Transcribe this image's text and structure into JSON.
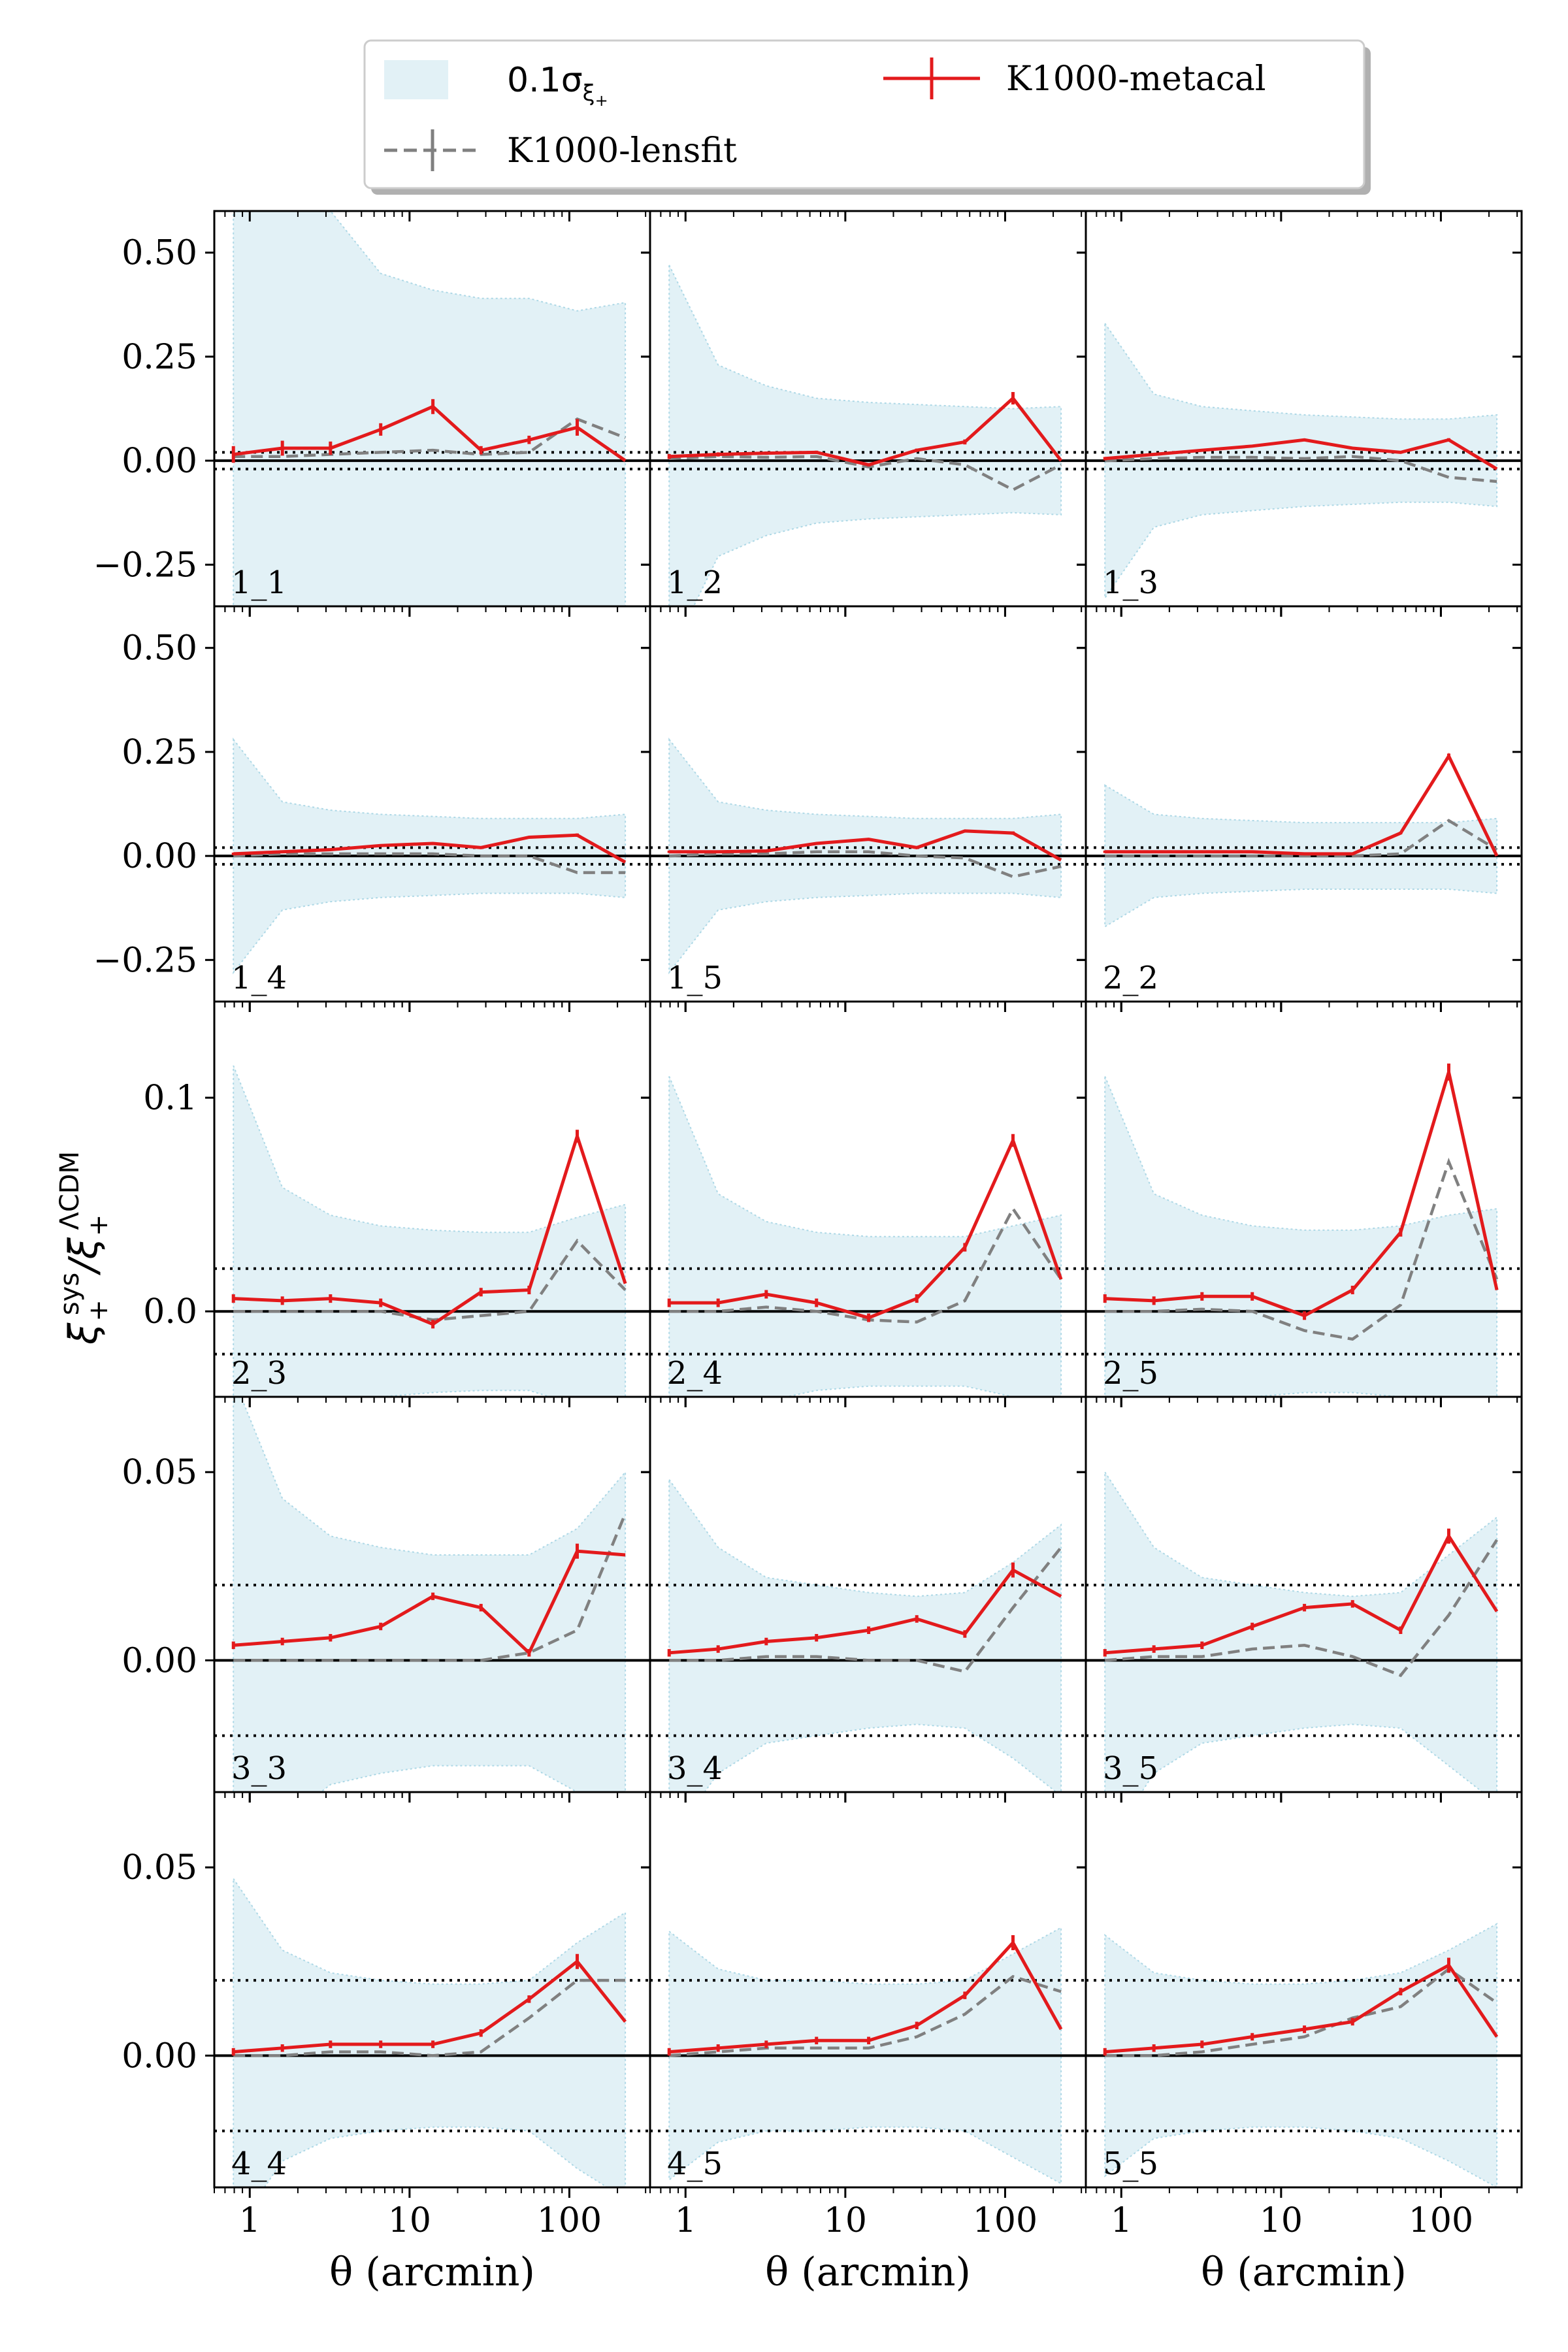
{
  "chart_data": {
    "type": "line",
    "layout": {
      "rows": 5,
      "cols": 3
    },
    "xlabel": "θ (arcmin)",
    "ylabel": {
      "prefix": "ξ",
      "sub1": "+",
      "sup1": "sys",
      "sep": "/ξ",
      "sub2": "+",
      "sup2": "ΛCDM"
    },
    "xscale": "log",
    "xlim": [
      0.6,
      320
    ],
    "xticks": [
      1,
      10,
      100
    ],
    "xticklabels": [
      "1",
      "10",
      "100"
    ],
    "x": [
      0.79,
      1.6,
      3.2,
      6.6,
      14,
      28,
      56,
      112,
      224
    ],
    "legend": {
      "placement": "top-center",
      "entries": [
        {
          "key": "band",
          "prefix": "0.1σ",
          "sub": "ξ",
          "subsub": "+"
        },
        {
          "key": "metacal",
          "label": "K1000-metacal"
        },
        {
          "key": "lensfit",
          "label": "K1000-lensfit"
        }
      ]
    },
    "colors": {
      "band": "#add8e6",
      "metacal": "#e31a1c",
      "lensfit": "#808080",
      "reference": "#000000"
    },
    "rows": [
      {
        "ylim": [
          -0.35,
          0.6
        ],
        "yticks": [
          -0.25,
          0.0,
          0.25,
          0.5
        ],
        "yticklabels": [
          "−0.25",
          "0.00",
          "0.25",
          "0.50"
        ],
        "threshold": 0.02
      },
      {
        "ylim": [
          -0.35,
          0.6
        ],
        "yticks": [
          -0.25,
          0.0,
          0.25,
          0.5
        ],
        "yticklabels": [
          "−0.25",
          "0.00",
          "0.25",
          "0.50"
        ],
        "threshold": 0.02
      },
      {
        "ylim": [
          -0.04,
          0.145
        ],
        "yticks": [
          0.0,
          0.1
        ],
        "yticklabels": [
          "0.0",
          "0.1"
        ],
        "threshold": 0.02
      },
      {
        "ylim": [
          -0.035,
          0.07
        ],
        "yticks": [
          0.0,
          0.05
        ],
        "yticklabels": [
          "0.00",
          "0.05"
        ],
        "threshold": 0.02
      },
      {
        "ylim": [
          -0.035,
          0.07
        ],
        "yticks": [
          0.0,
          0.05
        ],
        "yticklabels": [
          "0.00",
          "0.05"
        ],
        "threshold": 0.02
      }
    ],
    "panels": [
      {
        "label": "1_1",
        "row": 0,
        "col": 0,
        "metacal": [
          0.015,
          0.03,
          0.03,
          0.075,
          0.13,
          0.025,
          0.05,
          0.08,
          0.0
        ],
        "errors": [
          0.02,
          0.018,
          0.016,
          0.015,
          0.018,
          0.01,
          0.01,
          0.02,
          0.0
        ],
        "lensfit": [
          0.01,
          0.01,
          0.015,
          0.02,
          0.025,
          0.015,
          0.02,
          0.1,
          0.055
        ],
        "band": [
          0.7,
          0.7,
          0.6,
          0.45,
          0.41,
          0.39,
          0.39,
          0.36,
          0.38
        ]
      },
      {
        "label": "1_2",
        "row": 0,
        "col": 1,
        "metacal": [
          0.01,
          0.015,
          0.018,
          0.02,
          -0.01,
          0.025,
          0.045,
          0.15,
          0.0
        ],
        "errors": [
          0.006,
          0.005,
          0.004,
          0.004,
          0.004,
          0.004,
          0.006,
          0.015,
          0.0
        ],
        "lensfit": [
          0.005,
          0.01,
          0.008,
          0.01,
          -0.015,
          0.005,
          -0.01,
          -0.07,
          -0.01
        ],
        "band": [
          0.47,
          0.23,
          0.18,
          0.15,
          0.14,
          0.135,
          0.13,
          0.125,
          0.13
        ]
      },
      {
        "label": "1_3",
        "row": 0,
        "col": 2,
        "metacal": [
          0.005,
          0.015,
          0.025,
          0.035,
          0.05,
          0.03,
          0.02,
          0.05,
          -0.02
        ],
        "errors": [
          0.004,
          0.003,
          0.003,
          0.003,
          0.003,
          0.003,
          0.003,
          0.004,
          0.0
        ],
        "lensfit": [
          0.0,
          0.005,
          0.008,
          0.008,
          0.005,
          0.01,
          0.0,
          -0.04,
          -0.05
        ],
        "band": [
          0.33,
          0.16,
          0.13,
          0.12,
          0.11,
          0.105,
          0.1,
          0.1,
          0.11
        ]
      },
      {
        "label": "1_4",
        "row": 1,
        "col": 0,
        "metacal": [
          0.005,
          0.01,
          0.015,
          0.025,
          0.03,
          0.02,
          0.045,
          0.05,
          -0.015
        ],
        "errors": [
          0.003,
          0.003,
          0.003,
          0.003,
          0.003,
          0.003,
          0.003,
          0.004,
          0.0
        ],
        "lensfit": [
          0.0,
          0.005,
          0.005,
          0.005,
          0.005,
          0.0,
          0.0,
          -0.04,
          -0.04
        ],
        "band": [
          0.28,
          0.13,
          0.11,
          0.1,
          0.095,
          0.09,
          0.09,
          0.09,
          0.1
        ]
      },
      {
        "label": "1_5",
        "row": 1,
        "col": 1,
        "metacal": [
          0.01,
          0.01,
          0.012,
          0.03,
          0.04,
          0.02,
          0.06,
          0.055,
          -0.01
        ],
        "errors": [
          0.003,
          0.003,
          0.003,
          0.003,
          0.003,
          0.003,
          0.003,
          0.004,
          0.0
        ],
        "lensfit": [
          0.0,
          0.005,
          0.005,
          0.01,
          0.01,
          0.0,
          -0.005,
          -0.05,
          -0.025
        ],
        "band": [
          0.28,
          0.13,
          0.11,
          0.1,
          0.095,
          0.09,
          0.09,
          0.09,
          0.1
        ]
      },
      {
        "label": "2_2",
        "row": 1,
        "col": 2,
        "metacal": [
          0.01,
          0.01,
          0.01,
          0.01,
          0.005,
          0.005,
          0.055,
          0.24,
          0.0
        ],
        "errors": [
          0.003,
          0.003,
          0.003,
          0.003,
          0.003,
          0.003,
          0.003,
          0.006,
          0.0
        ],
        "lensfit": [
          0.0,
          0.0,
          0.0,
          0.0,
          0.0,
          0.0,
          0.005,
          0.085,
          0.015
        ],
        "band": [
          0.17,
          0.1,
          0.09,
          0.085,
          0.08,
          0.08,
          0.08,
          0.08,
          0.09
        ]
      },
      {
        "label": "2_3",
        "row": 2,
        "col": 0,
        "metacal": [
          0.006,
          0.005,
          0.006,
          0.004,
          -0.006,
          0.009,
          0.01,
          0.082,
          0.013
        ],
        "errors": [
          0.002,
          0.002,
          0.002,
          0.002,
          0.002,
          0.002,
          0.002,
          0.003,
          0.0
        ],
        "lensfit": [
          0.0,
          0.0,
          0.0,
          0.0,
          -0.004,
          -0.002,
          0.0,
          0.033,
          0.01
        ],
        "band": [
          0.115,
          0.058,
          0.045,
          0.04,
          0.038,
          0.037,
          0.037,
          0.044,
          0.05
        ]
      },
      {
        "label": "2_4",
        "row": 2,
        "col": 1,
        "metacal": [
          0.004,
          0.004,
          0.008,
          0.004,
          -0.003,
          0.006,
          0.03,
          0.08,
          0.015
        ],
        "errors": [
          0.002,
          0.002,
          0.002,
          0.002,
          0.002,
          0.002,
          0.002,
          0.003,
          0.0
        ],
        "lensfit": [
          0.0,
          0.0,
          0.002,
          0.0,
          -0.004,
          -0.005,
          0.005,
          0.048,
          0.015
        ],
        "band": [
          0.11,
          0.055,
          0.042,
          0.037,
          0.035,
          0.035,
          0.035,
          0.04,
          0.045
        ]
      },
      {
        "label": "2_5",
        "row": 2,
        "col": 2,
        "metacal": [
          0.006,
          0.005,
          0.007,
          0.007,
          -0.002,
          0.01,
          0.037,
          0.112,
          0.01
        ],
        "errors": [
          0.002,
          0.002,
          0.002,
          0.002,
          0.002,
          0.002,
          0.002,
          0.004,
          0.0
        ],
        "lensfit": [
          0.0,
          0.0,
          0.001,
          0.0,
          -0.009,
          -0.013,
          0.003,
          0.07,
          0.015
        ],
        "band": [
          0.11,
          0.055,
          0.045,
          0.04,
          0.038,
          0.038,
          0.04,
          0.045,
          0.048
        ]
      },
      {
        "label": "3_3",
        "row": 3,
        "col": 0,
        "metacal": [
          0.004,
          0.005,
          0.006,
          0.009,
          0.017,
          0.014,
          0.002,
          0.029,
          0.028
        ],
        "errors": [
          0.001,
          0.001,
          0.001,
          0.001,
          0.001,
          0.001,
          0.001,
          0.002,
          0.0
        ],
        "lensfit": [
          0.0,
          0.0,
          0.0,
          0.0,
          0.0,
          0.0,
          0.002,
          0.008,
          0.039
        ],
        "band": [
          0.075,
          0.043,
          0.033,
          0.03,
          0.028,
          0.028,
          0.028,
          0.035,
          0.05
        ]
      },
      {
        "label": "3_4",
        "row": 3,
        "col": 1,
        "metacal": [
          0.002,
          0.003,
          0.005,
          0.006,
          0.008,
          0.011,
          0.007,
          0.024,
          0.017
        ],
        "errors": [
          0.001,
          0.001,
          0.001,
          0.001,
          0.001,
          0.001,
          0.001,
          0.002,
          0.0
        ],
        "lensfit": [
          0.0,
          0.0,
          0.001,
          0.001,
          0.0,
          0.0,
          -0.003,
          0.014,
          0.03
        ],
        "band": [
          0.048,
          0.03,
          0.022,
          0.02,
          0.018,
          0.017,
          0.018,
          0.026,
          0.036
        ]
      },
      {
        "label": "3_5",
        "row": 3,
        "col": 2,
        "metacal": [
          0.002,
          0.003,
          0.004,
          0.009,
          0.014,
          0.015,
          0.008,
          0.033,
          0.013
        ],
        "errors": [
          0.001,
          0.001,
          0.001,
          0.001,
          0.001,
          0.001,
          0.001,
          0.002,
          0.0
        ],
        "lensfit": [
          0.0,
          0.001,
          0.001,
          0.003,
          0.004,
          0.001,
          -0.004,
          0.012,
          0.032
        ],
        "band": [
          0.05,
          0.03,
          0.022,
          0.02,
          0.018,
          0.017,
          0.018,
          0.028,
          0.038
        ]
      },
      {
        "label": "4_4",
        "row": 4,
        "col": 0,
        "metacal": [
          0.001,
          0.002,
          0.003,
          0.003,
          0.003,
          0.006,
          0.015,
          0.025,
          0.009
        ],
        "errors": [
          0.001,
          0.001,
          0.001,
          0.001,
          0.001,
          0.001,
          0.001,
          0.002,
          0.0
        ],
        "lensfit": [
          0.0,
          0.0,
          0.001,
          0.001,
          0.0,
          0.001,
          0.01,
          0.02,
          0.02
        ],
        "band": [
          0.047,
          0.028,
          0.022,
          0.02,
          0.019,
          0.019,
          0.02,
          0.03,
          0.038
        ]
      },
      {
        "label": "4_5",
        "row": 4,
        "col": 1,
        "metacal": [
          0.001,
          0.002,
          0.003,
          0.004,
          0.004,
          0.008,
          0.016,
          0.03,
          0.007
        ],
        "errors": [
          0.001,
          0.001,
          0.001,
          0.001,
          0.001,
          0.001,
          0.001,
          0.002,
          0.0
        ],
        "lensfit": [
          0.0,
          0.001,
          0.002,
          0.002,
          0.002,
          0.005,
          0.011,
          0.021,
          0.017
        ],
        "band": [
          0.033,
          0.023,
          0.02,
          0.02,
          0.019,
          0.019,
          0.02,
          0.027,
          0.034
        ]
      },
      {
        "label": "5_5",
        "row": 4,
        "col": 2,
        "metacal": [
          0.001,
          0.002,
          0.003,
          0.005,
          0.007,
          0.009,
          0.017,
          0.024,
          0.005
        ],
        "errors": [
          0.001,
          0.001,
          0.001,
          0.001,
          0.001,
          0.001,
          0.001,
          0.002,
          0.0
        ],
        "lensfit": [
          0.0,
          0.0,
          0.001,
          0.003,
          0.005,
          0.01,
          0.013,
          0.023,
          0.014
        ],
        "band": [
          0.032,
          0.022,
          0.02,
          0.019,
          0.019,
          0.02,
          0.022,
          0.028,
          0.035
        ]
      }
    ]
  }
}
